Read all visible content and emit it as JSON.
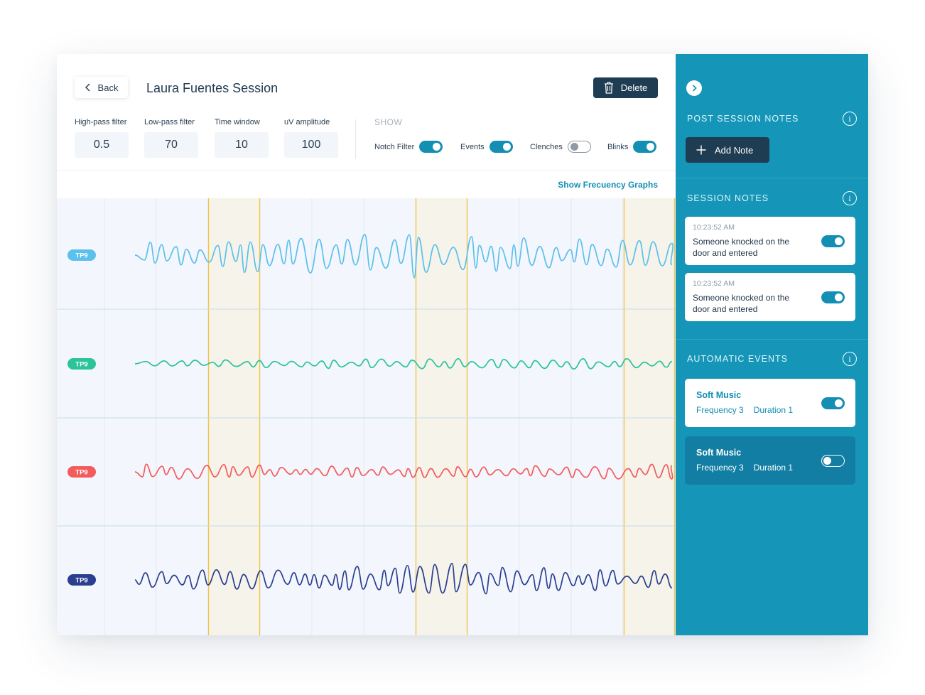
{
  "header": {
    "back_label": "Back",
    "session_title": "Laura Fuentes Session",
    "delete_label": "Delete"
  },
  "filters": [
    {
      "label": "High-pass filter",
      "value": "0.5"
    },
    {
      "label": "Low-pass filter",
      "value": "70"
    },
    {
      "label": "Time window",
      "value": "10"
    },
    {
      "label": "uV amplitude",
      "value": "100"
    }
  ],
  "show": {
    "label": "SHOW",
    "toggles": [
      {
        "label": "Notch Filter",
        "on": true
      },
      {
        "label": "Events",
        "on": true
      },
      {
        "label": "Clenches",
        "on": false
      },
      {
        "label": "Blinks",
        "on": true
      }
    ]
  },
  "frequency_link": "Show Frecuency Graphs",
  "channels": [
    {
      "label": "TP9",
      "color": "#5bc0ec"
    },
    {
      "label": "TP9",
      "color": "#2cc39a"
    },
    {
      "label": "TP9",
      "color": "#f35c5c"
    },
    {
      "label": "TP9",
      "color": "#2a3f8f"
    }
  ],
  "colors": {
    "accent": "#138fb4",
    "sidebar": "#1596b8",
    "dark_button": "#1f3d52",
    "event_band": "#f5f3ea",
    "event_line": "#f4c542"
  },
  "sidebar": {
    "post_session_title": "POST SESSION NOTES",
    "add_note_label": "Add Note",
    "session_notes_title": "SESSION NOTES",
    "notes": [
      {
        "time": "10:23:52 AM",
        "text": "Someone knocked on the door and entered",
        "on": true
      },
      {
        "time": "10:23:52 AM",
        "text": "Someone knocked on the door and entered",
        "on": true
      }
    ],
    "automatic_events_title": "AUTOMATIC EVENTS",
    "events": [
      {
        "title": "Soft Music",
        "frequency": "Frequency 3",
        "duration": "Duration 1",
        "on": true
      },
      {
        "title": "Soft Music",
        "frequency": "Frequency 3",
        "duration": "Duration 1",
        "on": false
      }
    ]
  },
  "icons": [
    "chevron-left-icon",
    "trash-icon",
    "chevron-right-icon",
    "info-icon",
    "plus-icon"
  ]
}
